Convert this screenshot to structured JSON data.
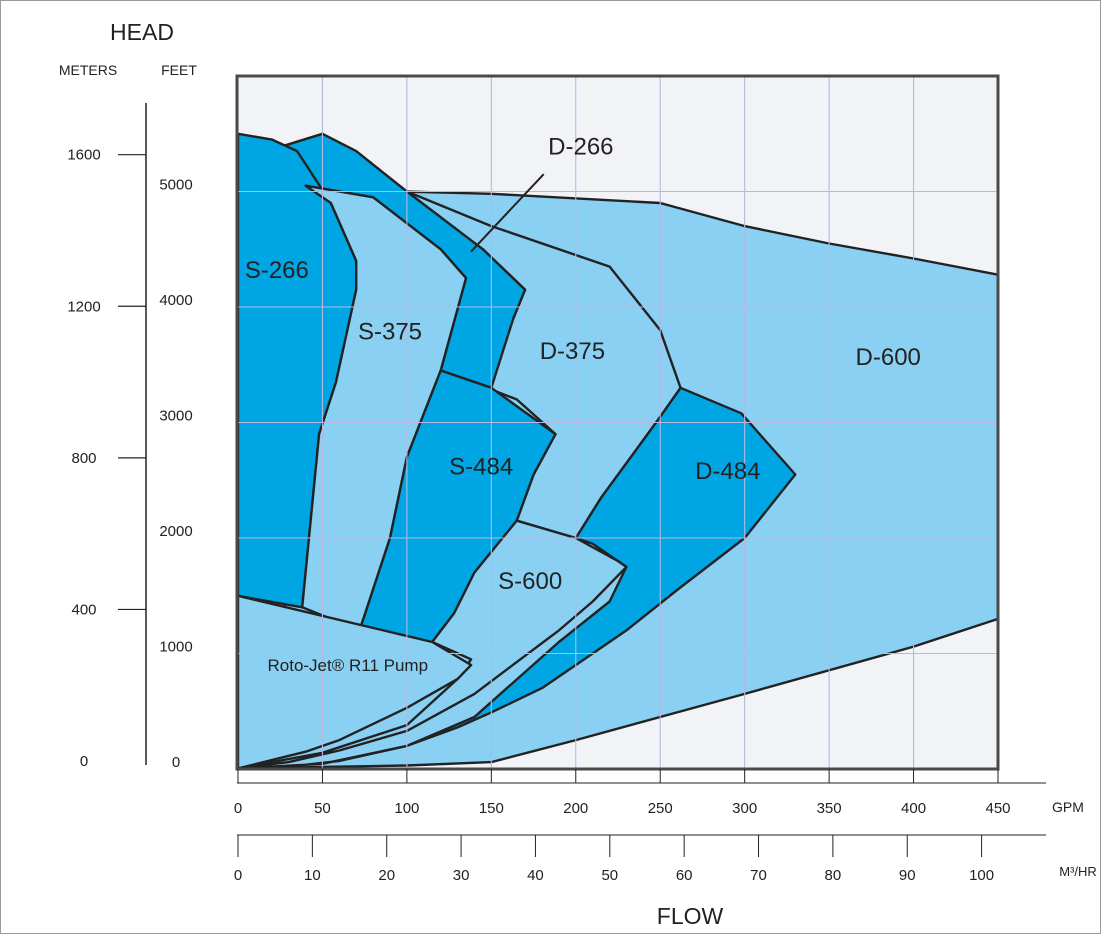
{
  "chart_data": {
    "type": "area",
    "axis_titles": {
      "head": "HEAD",
      "meters": "METERS",
      "feet": "FEET",
      "flow": "FLOW",
      "gpm": "GPM",
      "m3hr": "M³/HR"
    },
    "x_gpm": {
      "min": 0,
      "max": 450,
      "ticks": [
        "0",
        "50",
        "100",
        "150",
        "200",
        "250",
        "300",
        "350",
        "400",
        "450"
      ]
    },
    "y_feet": {
      "min": 0,
      "max": 5500,
      "ticks": [
        "0",
        "1000",
        "2000",
        "3000",
        "4000",
        "5000"
      ]
    },
    "y_meters_ticks": [
      "0",
      "400",
      "800",
      "1200",
      "1600"
    ],
    "x_m3hr_ticks": [
      "0",
      "10",
      "20",
      "30",
      "40",
      "50",
      "60",
      "70",
      "80",
      "90",
      "100"
    ],
    "grid": true,
    "colors": {
      "dark_region": "#00a6e4",
      "light_region": "#8ad0f3",
      "plot_bg": "#f2f3f7",
      "grid": "#b8b7e2",
      "outline": "#222222"
    },
    "regions": [
      {
        "name": "D-600",
        "shade": "light",
        "boundary": [
          [
            98,
            5000
          ],
          [
            150,
            4980
          ],
          [
            250,
            4900
          ],
          [
            300,
            4700
          ],
          [
            350,
            4550
          ],
          [
            400,
            4420
          ],
          [
            450,
            4280
          ],
          [
            450,
            1300
          ],
          [
            400,
            1060
          ],
          [
            300,
            650
          ],
          [
            200,
            250
          ],
          [
            150,
            60
          ],
          [
            100,
            30
          ],
          [
            0,
            5
          ]
        ]
      },
      {
        "name": "D-484",
        "shade": "dark",
        "boundary": [
          [
            262,
            3300
          ],
          [
            298,
            3080
          ],
          [
            330,
            2550
          ],
          [
            300,
            2000
          ],
          [
            260,
            1550
          ],
          [
            230,
            1200
          ],
          [
            210,
            1000
          ],
          [
            180,
            700
          ],
          [
            150,
            490
          ],
          [
            130,
            360
          ],
          [
            100,
            200
          ],
          [
            60,
            70
          ],
          [
            30,
            20
          ],
          [
            0,
            5
          ],
          [
            50,
            45
          ],
          [
            100,
            200
          ],
          [
            140,
            450
          ],
          [
            190,
            1100
          ],
          [
            220,
            1450
          ],
          [
            230,
            1750
          ],
          [
            225,
            1800
          ],
          [
            210,
            1950
          ],
          [
            200,
            2000
          ],
          [
            215,
            2350
          ],
          [
            235,
            2750
          ],
          [
            250,
            3050
          ]
        ]
      },
      {
        "name": "D-375",
        "shade": "light",
        "boundary": [
          [
            100,
            5000
          ],
          [
            150,
            4700
          ],
          [
            220,
            4350
          ],
          [
            250,
            3800
          ],
          [
            262,
            3300
          ],
          [
            250,
            3050
          ],
          [
            235,
            2750
          ],
          [
            215,
            2350
          ],
          [
            200,
            2000
          ],
          [
            165,
            2150
          ],
          [
            175,
            2550
          ],
          [
            188,
            2900
          ],
          [
            165,
            3200
          ],
          [
            147,
            3300
          ],
          [
            150,
            3550
          ],
          [
            163,
            3900
          ],
          [
            170,
            4150
          ],
          [
            145,
            4500
          ],
          [
            100,
            4980
          ]
        ]
      },
      {
        "name": "D-266",
        "shade": "dark",
        "boundary": [
          [
            28,
            5400
          ],
          [
            50,
            5500
          ],
          [
            70,
            5350
          ],
          [
            100,
            5000
          ],
          [
            145,
            4500
          ],
          [
            170,
            4150
          ],
          [
            163,
            3900
          ],
          [
            150,
            3300
          ],
          [
            120,
            3450
          ],
          [
            135,
            4250
          ],
          [
            120,
            4500
          ],
          [
            80,
            4950
          ],
          [
            40,
            5050
          ],
          [
            28,
            5400
          ]
        ]
      },
      {
        "name": "S-266",
        "shade": "dark",
        "boundary": [
          [
            0,
            5500
          ],
          [
            20,
            5450
          ],
          [
            35,
            5350
          ],
          [
            55,
            4900
          ],
          [
            70,
            4400
          ],
          [
            70,
            4150
          ],
          [
            58,
            3350
          ],
          [
            48,
            2900
          ],
          [
            38,
            1400
          ],
          [
            0,
            1500
          ]
        ]
      },
      {
        "name": "S-375",
        "shade": "light",
        "boundary": [
          [
            40,
            5050
          ],
          [
            80,
            4950
          ],
          [
            120,
            4500
          ],
          [
            135,
            4250
          ],
          [
            120,
            3450
          ],
          [
            100,
            2700
          ],
          [
            90,
            2000
          ],
          [
            72,
            1200
          ],
          [
            38,
            1400
          ],
          [
            48,
            2900
          ],
          [
            58,
            3350
          ],
          [
            70,
            4150
          ],
          [
            70,
            4400
          ],
          [
            55,
            4900
          ]
        ]
      },
      {
        "name": "S-484",
        "shade": "dark",
        "boundary": [
          [
            120,
            3450
          ],
          [
            150,
            3300
          ],
          [
            188,
            2900
          ],
          [
            175,
            2550
          ],
          [
            165,
            2150
          ],
          [
            140,
            1700
          ],
          [
            128,
            1350
          ],
          [
            115,
            1100
          ],
          [
            72,
            1200
          ],
          [
            90,
            2000
          ],
          [
            100,
            2700
          ]
        ]
      },
      {
        "name": "S-600",
        "shade": "light",
        "boundary": [
          [
            165,
            2150
          ],
          [
            200,
            2000
          ],
          [
            225,
            1800
          ],
          [
            230,
            1750
          ],
          [
            210,
            1450
          ],
          [
            190,
            1200
          ],
          [
            140,
            650
          ],
          [
            100,
            330
          ],
          [
            60,
            160
          ],
          [
            30,
            60
          ],
          [
            0,
            5
          ],
          [
            50,
            140
          ],
          [
            100,
            380
          ],
          [
            130,
            780
          ],
          [
            138,
            950
          ],
          [
            115,
            1100
          ],
          [
            128,
            1350
          ],
          [
            140,
            1700
          ]
        ]
      },
      {
        "name": "Roto-Jet® R11 Pump",
        "shade": "light",
        "boundary": [
          [
            0,
            1500
          ],
          [
            115,
            1100
          ],
          [
            138,
            900
          ],
          [
            130,
            780
          ],
          [
            100,
            530
          ],
          [
            60,
            250
          ],
          [
            40,
            150
          ],
          [
            0,
            5
          ]
        ]
      }
    ],
    "labels": [
      {
        "text": "S-266",
        "gpm": 23,
        "ft": 4250
      },
      {
        "text": "S-375",
        "gpm": 90,
        "ft": 3720
      },
      {
        "text": "D-375",
        "gpm": 198,
        "ft": 3550
      },
      {
        "text": "D-600",
        "gpm": 385,
        "ft": 3500
      },
      {
        "text": "S-484",
        "gpm": 144,
        "ft": 2550
      },
      {
        "text": "D-484",
        "gpm": 290,
        "ft": 2510
      },
      {
        "text": "S-600",
        "gpm": 173,
        "ft": 1560
      },
      {
        "text": "Roto-Jet® R11 Pump",
        "gpm": 65,
        "ft": 850
      },
      {
        "text": "D-266",
        "gpm": 203,
        "ft": 5320
      }
    ],
    "d266_leader": [
      [
        181,
        5150
      ],
      [
        138,
        4480
      ]
    ]
  }
}
